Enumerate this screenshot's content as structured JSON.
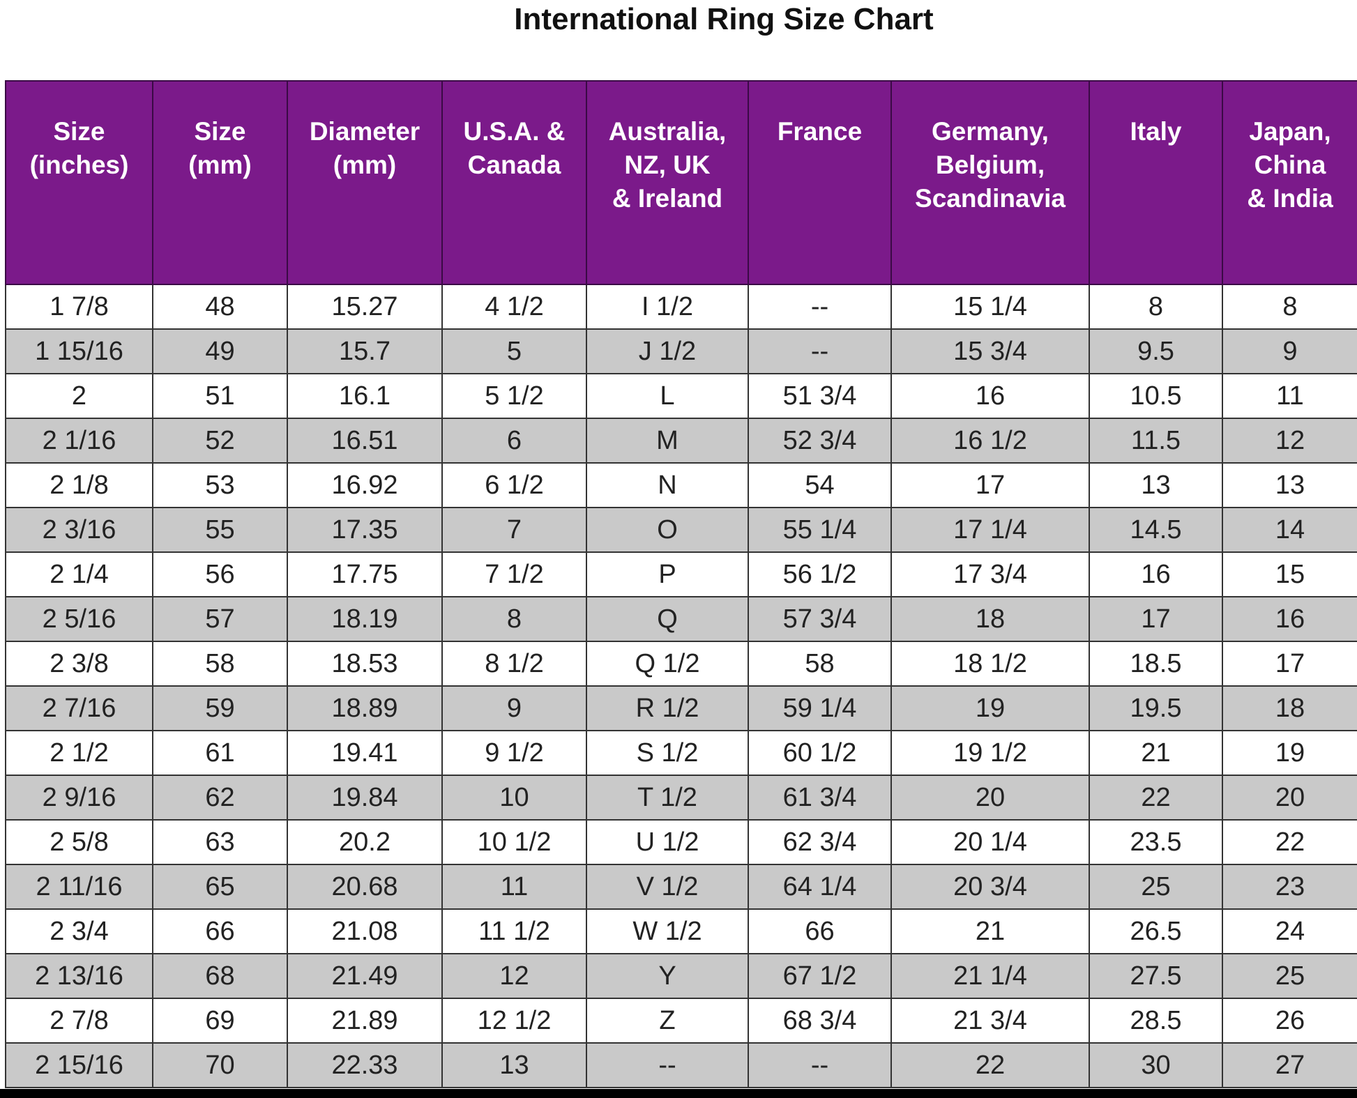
{
  "title": "International Ring Size Chart",
  "table": {
    "header": [
      "Size\n(inches)",
      "Size\n(mm)",
      "Diameter\n(mm)",
      "U.S.A. &\nCanada",
      "Australia,\nNZ, UK\n& Ireland",
      "France",
      "Germany,\nBelgium,\nScandinavia",
      "Italy",
      "Japan,\nChina\n& India"
    ],
    "rows": [
      [
        "1 7/8",
        "48",
        "15.27",
        "4 1/2",
        "I 1/2",
        "--",
        "15 1/4",
        "8",
        "8"
      ],
      [
        "1 15/16",
        "49",
        "15.7",
        "5",
        "J 1/2",
        "--",
        "15 3/4",
        "9.5",
        "9"
      ],
      [
        "2",
        "51",
        "16.1",
        "5 1/2",
        "L",
        "51 3/4",
        "16",
        "10.5",
        "11"
      ],
      [
        "2 1/16",
        "52",
        "16.51",
        "6",
        "M",
        "52 3/4",
        "16 1/2",
        "11.5",
        "12"
      ],
      [
        "2 1/8",
        "53",
        "16.92",
        "6 1/2",
        "N",
        "54",
        "17",
        "13",
        "13"
      ],
      [
        "2 3/16",
        "55",
        "17.35",
        "7",
        "O",
        "55 1/4",
        "17 1/4",
        "14.5",
        "14"
      ],
      [
        "2 1/4",
        "56",
        "17.75",
        "7 1/2",
        "P",
        "56 1/2",
        "17 3/4",
        "16",
        "15"
      ],
      [
        "2 5/16",
        "57",
        "18.19",
        "8",
        "Q",
        "57 3/4",
        "18",
        "17",
        "16"
      ],
      [
        "2 3/8",
        "58",
        "18.53",
        "8 1/2",
        "Q 1/2",
        "58",
        "18 1/2",
        "18.5",
        "17"
      ],
      [
        "2 7/16",
        "59",
        "18.89",
        "9",
        "R 1/2",
        "59 1/4",
        "19",
        "19.5",
        "18"
      ],
      [
        "2 1/2",
        "61",
        "19.41",
        "9 1/2",
        "S 1/2",
        "60 1/2",
        "19 1/2",
        "21",
        "19"
      ],
      [
        "2 9/16",
        "62",
        "19.84",
        "10",
        "T 1/2",
        "61 3/4",
        "20",
        "22",
        "20"
      ],
      [
        "2 5/8",
        "63",
        "20.2",
        "10 1/2",
        "U 1/2",
        "62 3/4",
        "20 1/4",
        "23.5",
        "22"
      ],
      [
        "2 11/16",
        "65",
        "20.68",
        "11",
        "V 1/2",
        "64 1/4",
        "20 3/4",
        "25",
        "23"
      ],
      [
        "2 3/4",
        "66",
        "21.08",
        "11 1/2",
        "W 1/2",
        "66",
        "21",
        "26.5",
        "24"
      ],
      [
        "2 13/16",
        "68",
        "21.49",
        "12",
        "Y",
        "67 1/2",
        "21 1/4",
        "27.5",
        "25"
      ],
      [
        "2 7/8",
        "69",
        "21.89",
        "12 1/2",
        "Z",
        "68 3/4",
        "21 3/4",
        "28.5",
        "26"
      ],
      [
        "2 15/16",
        "70",
        "22.33",
        "13",
        "--",
        "--",
        "22",
        "30",
        "27"
      ]
    ]
  }
}
